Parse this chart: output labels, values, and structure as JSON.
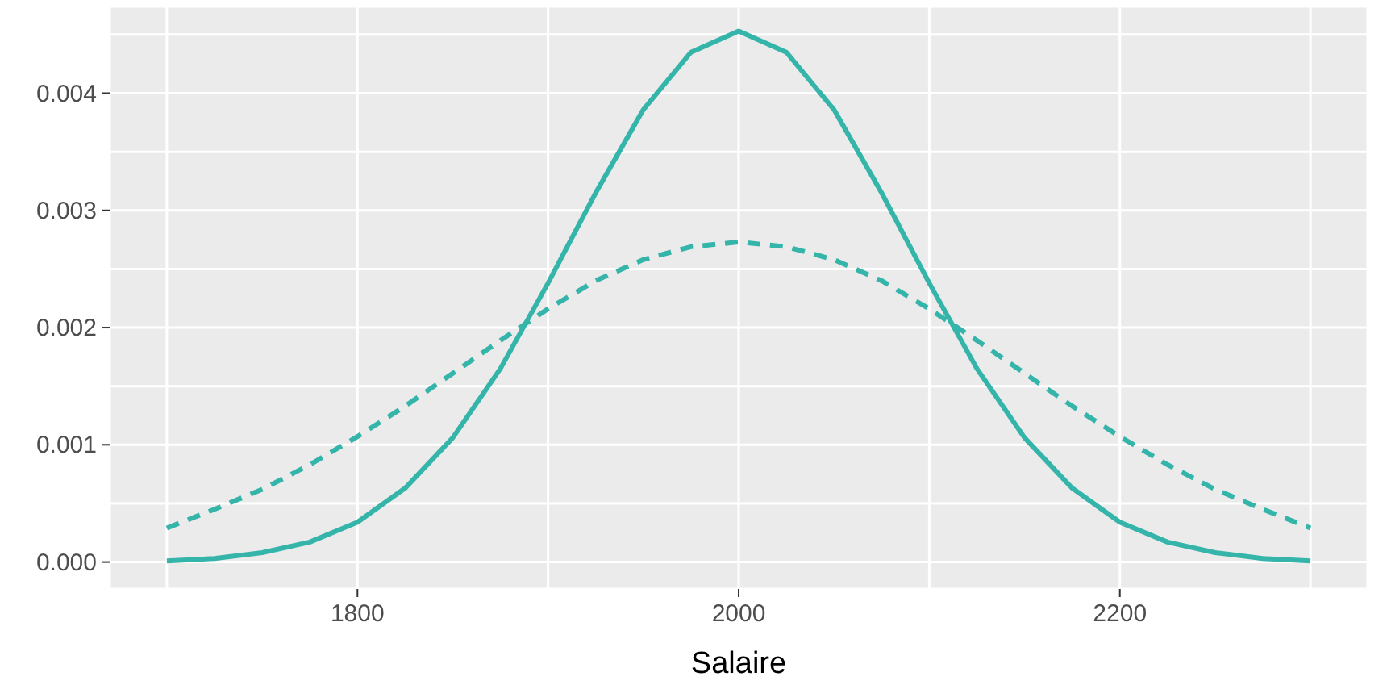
{
  "chart_data": {
    "type": "line",
    "xlabel": "Salaire",
    "x": [
      1700,
      1725,
      1750,
      1775,
      1800,
      1825,
      1850,
      1875,
      1900,
      1925,
      1950,
      1975,
      2000,
      2025,
      2050,
      2075,
      2100,
      2125,
      2150,
      2175,
      2200,
      2225,
      2250,
      2275,
      2300
    ],
    "series": [
      {
        "color": "#35b5aa",
        "line_style": "solid",
        "values": [
          1e-05,
          3e-05,
          8e-05,
          0.00017,
          0.00034,
          0.00063,
          0.00106,
          0.00165,
          0.00238,
          0.00315,
          0.00386,
          0.00435,
          0.00453,
          0.00435,
          0.00386,
          0.00315,
          0.00238,
          0.00165,
          0.00106,
          0.00063,
          0.00034,
          0.00017,
          8e-05,
          3e-05,
          1e-05
        ]
      },
      {
        "color": "#35b5aa",
        "line_style": "dashed",
        "values": [
          0.00029,
          0.00045,
          0.00062,
          0.00083,
          0.00107,
          0.00133,
          0.00161,
          0.00189,
          0.00216,
          0.0024,
          0.00258,
          0.00269,
          0.00273,
          0.00269,
          0.00258,
          0.0024,
          0.00216,
          0.00189,
          0.00161,
          0.00133,
          0.00107,
          0.00083,
          0.00062,
          0.00045,
          0.00029
        ]
      }
    ],
    "xlim": [
      1670,
      2330
    ],
    "xticks": [
      {
        "value": 1700,
        "label": null
      },
      1800,
      {
        "value": 1900,
        "label": null
      },
      2000,
      {
        "value": 2100,
        "label": null
      },
      2200,
      {
        "value": 2300,
        "label": null
      }
    ],
    "ylim": [
      -0.00023,
      0.00474
    ],
    "yticks": [
      "0.000",
      {
        "value": 0.0005,
        "label": null
      },
      {
        "value": 0.001,
        "label": "0.001"
      },
      {
        "value": 0.0015,
        "label": null
      },
      {
        "value": 0.002,
        "label": "0.002"
      },
      {
        "value": 0.0025,
        "label": null
      },
      {
        "value": 0.003,
        "label": "0.003"
      },
      {
        "value": 0.0035,
        "label": null
      },
      {
        "value": 0.004,
        "label": "0.004"
      },
      {
        "value": 0.0045,
        "label": null
      }
    ],
    "grid": true,
    "marker": "none"
  }
}
